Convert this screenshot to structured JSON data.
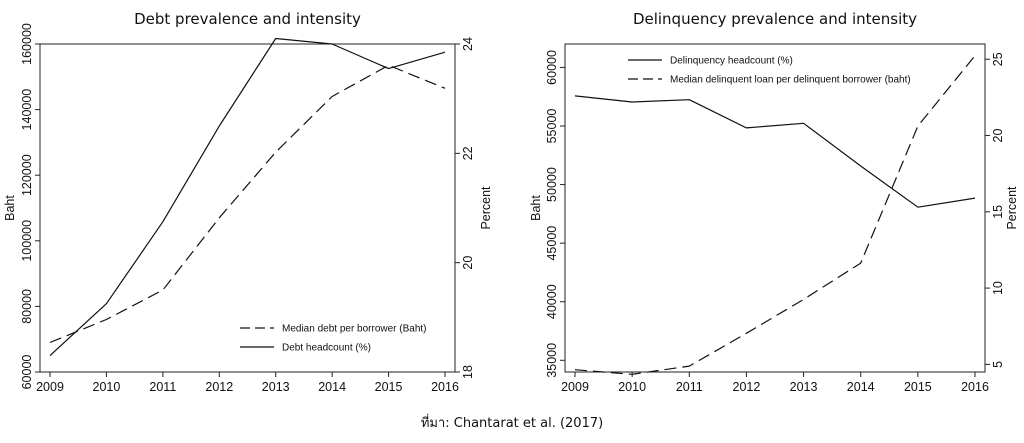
{
  "chart_data": [
    {
      "type": "line",
      "title": "Debt prevalence and intensity",
      "x": [
        2009,
        2010,
        2011,
        2012,
        2013,
        2014,
        2015,
        2016
      ],
      "xlim": [
        2009,
        2016
      ],
      "ylabel": "Baht",
      "ylim": [
        60000,
        160000
      ],
      "yticks": [
        60000,
        80000,
        100000,
        120000,
        140000,
        160000
      ],
      "y2label": "Percent",
      "y2lim": [
        18,
        24
      ],
      "y2ticks": [
        18,
        20,
        22,
        24
      ],
      "legend_position": "bottom-right",
      "series": [
        {
          "name": "Median debt per borrower (Baht)",
          "axis": "left",
          "style": "dashed",
          "values": [
            69000,
            76000,
            85000,
            107000,
            127000,
            144000,
            153500,
            146500
          ]
        },
        {
          "name": "Debt headcount (%)",
          "axis": "right",
          "style": "solid",
          "values": [
            18.3,
            19.25,
            20.75,
            22.5,
            24.1,
            24.0,
            23.55,
            23.85
          ]
        }
      ]
    },
    {
      "type": "line",
      "title": "Delinquency prevalence and intensity",
      "x": [
        2009,
        2010,
        2011,
        2012,
        2013,
        2014,
        2015,
        2016
      ],
      "xlim": [
        2009,
        2016
      ],
      "ylabel": "Baht",
      "ylim": [
        34000,
        62000
      ],
      "yticks": [
        35000,
        40000,
        45000,
        50000,
        55000,
        60000
      ],
      "y2label": "Percent",
      "y2lim": [
        4.5,
        26
      ],
      "y2ticks": [
        5,
        10,
        15,
        20,
        25
      ],
      "legend_position": "top-left",
      "series": [
        {
          "name": "Delinquency headcount (%)",
          "axis": "right",
          "style": "solid",
          "values": [
            22.6,
            22.2,
            22.35,
            20.5,
            20.8,
            18.0,
            15.3,
            15.9
          ]
        },
        {
          "name": "Median delinquent loan per delinquent borrower (baht)",
          "axis": "left",
          "style": "dashed",
          "values": [
            34200,
            33800,
            34500,
            37300,
            40200,
            43300,
            55000,
            61000
          ]
        }
      ]
    }
  ],
  "source_text": "ที่มา: Chantarat et al. (2017)"
}
